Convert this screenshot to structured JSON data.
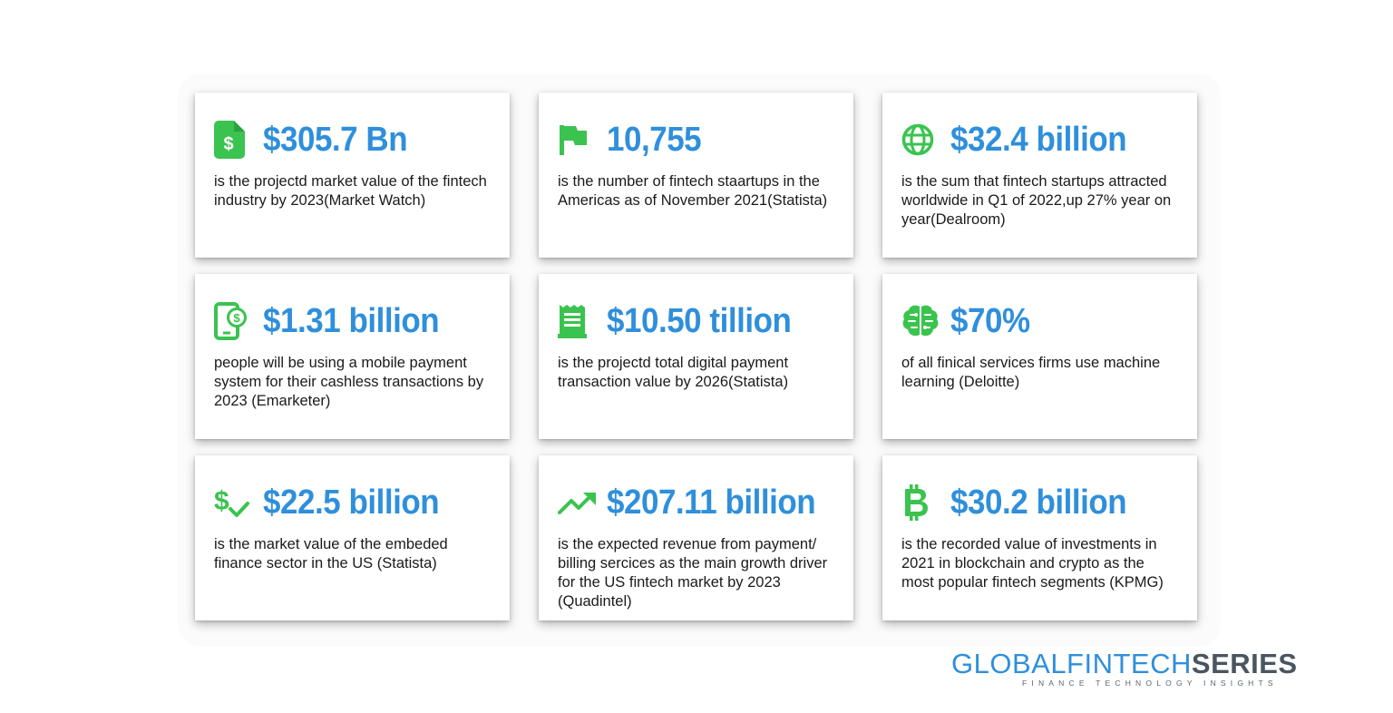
{
  "colors": {
    "stat_blue": "#2f8fdb",
    "icon_green": "#3ac34f",
    "text": "#1a1a1a",
    "brand_gray": "#4a5560"
  },
  "cards": [
    {
      "icon": "document-dollar-icon",
      "stat": "$305.7 Bn",
      "text": "is the projectd market value of the fintech industry by 2023(Market Watch)"
    },
    {
      "icon": "flag-icon",
      "stat": "10,755",
      "text": "is the number of fintech staartups in the Americas as of November 2021(Statista)"
    },
    {
      "icon": "globe-icon",
      "stat": "$32.4 billion",
      "text": "is the sum that fintech startups attracted worldwide in Q1 of 2022,up 27% year on year(Dealroom)"
    },
    {
      "icon": "mobile-payment-icon",
      "stat": "$1.31 billion",
      "text": "people will be using a mobile payment system for their cashless transactions by 2023 (Emarketer)"
    },
    {
      "icon": "receipt-icon",
      "stat": "$10.50 tillion",
      "text": "is the projectd total digital payment transaction value by 2026(Statista)"
    },
    {
      "icon": "brain-icon",
      "stat": "$70%",
      "text": "of all finical services firms use machine learning (Deloitte)"
    },
    {
      "icon": "dollar-check-icon",
      "stat": "$22.5 billion",
      "text": "is the market value of the embeded finance sector in the US (Statista)"
    },
    {
      "icon": "trending-up-icon",
      "stat": "$207.11 billion",
      "text": "is the expected revenue from payment/ billing sercices as the main growth driver for the US fintech market by 2023 (Quadintel)"
    },
    {
      "icon": "bitcoin-icon",
      "stat": "$30.2 billion",
      "text": "is the recorded value of investments in 2021 in blockchain and crypto as the most popular fintech segments (KPMG)"
    }
  ],
  "brand": {
    "name_light": "GLOBALFINTECH",
    "name_bold": "SERIES",
    "tagline": "FINANCE TECHNOLOGY INSIGHTS"
  }
}
